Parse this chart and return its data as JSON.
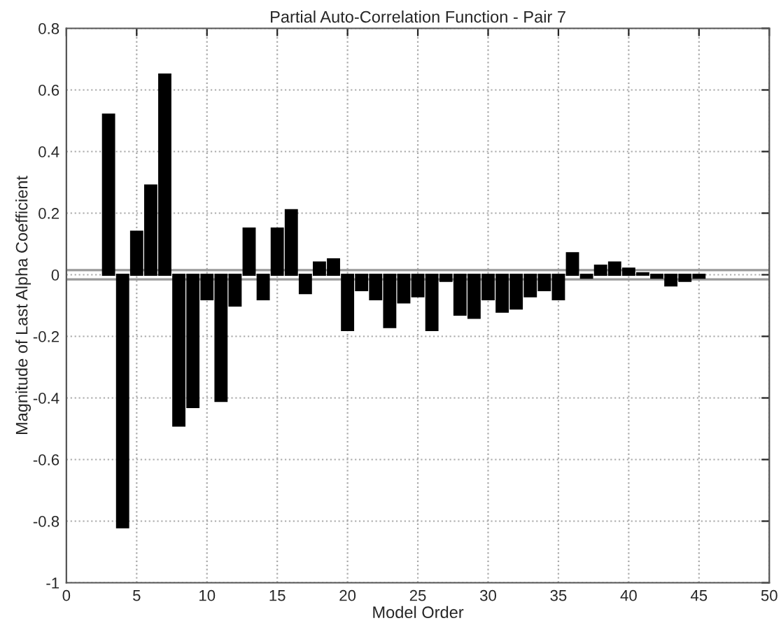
{
  "chart_data": {
    "type": "bar",
    "title": "Partial Auto-Correlation Function - Pair 7",
    "xlabel": "Model Order",
    "ylabel": "Magnitude of Last Alpha Coefficient",
    "x": [
      3,
      4,
      5,
      6,
      7,
      8,
      9,
      10,
      11,
      12,
      13,
      14,
      15,
      16,
      17,
      18,
      19,
      20,
      21,
      22,
      23,
      24,
      25,
      26,
      27,
      28,
      29,
      30,
      31,
      32,
      33,
      34,
      35,
      36,
      37,
      38,
      39,
      40,
      41,
      42,
      43,
      44,
      45
    ],
    "values": [
      0.52,
      -0.82,
      0.14,
      0.29,
      0.65,
      -0.49,
      -0.43,
      -0.08,
      -0.41,
      -0.1,
      0.15,
      -0.08,
      0.15,
      0.21,
      -0.06,
      0.04,
      0.05,
      -0.18,
      -0.05,
      -0.08,
      -0.17,
      -0.09,
      -0.07,
      -0.18,
      -0.02,
      -0.13,
      -0.14,
      -0.08,
      -0.12,
      -0.11,
      -0.07,
      -0.05,
      -0.08,
      0.07,
      -0.01,
      0.03,
      0.04,
      0.02,
      0.005,
      -0.01,
      -0.035,
      -0.02,
      -0.01
    ],
    "color": "#000000",
    "xlim": [
      0,
      50
    ],
    "xticks": [
      0,
      5,
      10,
      15,
      20,
      25,
      30,
      35,
      40,
      45,
      50
    ],
    "ylim": [
      -1,
      0.8
    ],
    "yticks": [
      -1,
      -0.8,
      -0.6,
      -0.4,
      -0.2,
      0,
      0.2,
      0.4,
      0.6,
      0.8
    ],
    "grid": true,
    "ref_lines": [
      {
        "axis": "y",
        "value": 0.015,
        "color": "#999999",
        "line_style": "solid"
      },
      {
        "axis": "y",
        "value": -0.015,
        "color": "#999999",
        "line_style": "solid"
      }
    ]
  }
}
